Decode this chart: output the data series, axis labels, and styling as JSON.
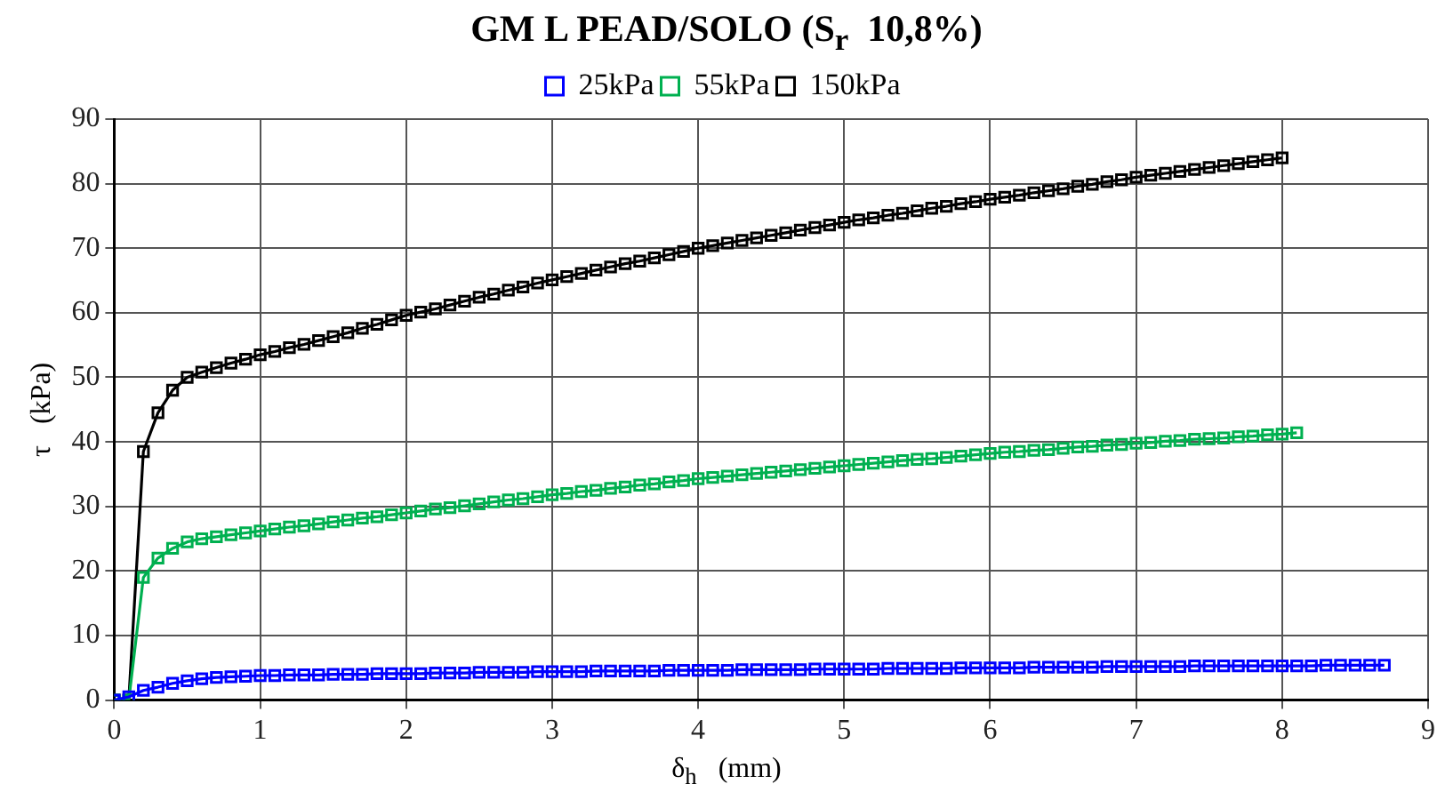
{
  "chart_data": {
    "type": "line",
    "title": "GM L PEAD/SOLO (S$_{r}$  10,8%)",
    "xlabel": "δ$_{h}$   (mm)",
    "ylabel": "τ   (kPa)",
    "xlim": [
      0,
      9
    ],
    "xticks": [
      0,
      1,
      2,
      3,
      4,
      5,
      6,
      7,
      8,
      9
    ],
    "ylim": [
      0,
      90
    ],
    "yticks": [
      0,
      10,
      20,
      30,
      40,
      50,
      60,
      70,
      80,
      90
    ],
    "grid": true,
    "legend": "top",
    "marker": "square",
    "line_style": "solid",
    "series": [
      {
        "name": "25kPa",
        "color": "#0000ff",
        "x": [
          0,
          0.1,
          0.2,
          0.3,
          0.4,
          0.5,
          0.6,
          0.7,
          0.8,
          0.9,
          1.0,
          1.1,
          1.2,
          1.3,
          1.4,
          1.5,
          1.6,
          1.7,
          1.8,
          1.9,
          2.0,
          2.1,
          2.2,
          2.3,
          2.4,
          2.5,
          2.6,
          2.7,
          2.8,
          2.9,
          3.0,
          3.1,
          3.2,
          3.3,
          3.4,
          3.5,
          3.6,
          3.7,
          3.8,
          3.9,
          4.0,
          4.1,
          4.2,
          4.3,
          4.4,
          4.5,
          4.6,
          4.7,
          4.8,
          4.9,
          5.0,
          5.1,
          5.2,
          5.3,
          5.4,
          5.5,
          5.6,
          5.7,
          5.8,
          5.9,
          6.0,
          6.1,
          6.2,
          6.3,
          6.4,
          6.5,
          6.6,
          6.7,
          6.8,
          6.9,
          7.0,
          7.1,
          7.2,
          7.3,
          7.4,
          7.5,
          7.6,
          7.7,
          7.8,
          7.9,
          8.0,
          8.1,
          8.2,
          8.3,
          8.4,
          8.5,
          8.6,
          8.7
        ],
        "values": [
          0,
          0.5,
          1.5,
          2.0,
          2.6,
          3.0,
          3.3,
          3.5,
          3.6,
          3.7,
          3.8,
          3.8,
          3.9,
          3.9,
          3.9,
          4.0,
          4.0,
          4.0,
          4.1,
          4.1,
          4.1,
          4.1,
          4.2,
          4.2,
          4.2,
          4.3,
          4.3,
          4.3,
          4.3,
          4.4,
          4.4,
          4.4,
          4.4,
          4.5,
          4.5,
          4.5,
          4.5,
          4.5,
          4.6,
          4.6,
          4.6,
          4.6,
          4.6,
          4.7,
          4.7,
          4.7,
          4.7,
          4.7,
          4.8,
          4.8,
          4.8,
          4.8,
          4.8,
          4.9,
          4.9,
          4.9,
          4.9,
          4.9,
          5.0,
          5.0,
          5.0,
          5.0,
          5.0,
          5.1,
          5.1,
          5.1,
          5.1,
          5.1,
          5.2,
          5.2,
          5.2,
          5.2,
          5.2,
          5.2,
          5.3,
          5.3,
          5.3,
          5.3,
          5.3,
          5.3,
          5.3,
          5.3,
          5.3,
          5.4,
          5.4,
          5.4,
          5.4,
          5.4
        ]
      },
      {
        "name": "55kPa",
        "color": "#00b050",
        "x": [
          0,
          0.1,
          0.2,
          0.3,
          0.4,
          0.5,
          0.6,
          0.7,
          0.8,
          0.9,
          1.0,
          1.1,
          1.2,
          1.3,
          1.4,
          1.5,
          1.6,
          1.7,
          1.8,
          1.9,
          2.0,
          2.1,
          2.2,
          2.3,
          2.4,
          2.5,
          2.6,
          2.7,
          2.8,
          2.9,
          3.0,
          3.1,
          3.2,
          3.3,
          3.4,
          3.5,
          3.6,
          3.7,
          3.8,
          3.9,
          4.0,
          4.1,
          4.2,
          4.3,
          4.4,
          4.5,
          4.6,
          4.7,
          4.8,
          4.9,
          5.0,
          5.1,
          5.2,
          5.3,
          5.4,
          5.5,
          5.6,
          5.7,
          5.8,
          5.9,
          6.0,
          6.1,
          6.2,
          6.3,
          6.4,
          6.5,
          6.6,
          6.7,
          6.8,
          6.9,
          7.0,
          7.1,
          7.2,
          7.3,
          7.4,
          7.5,
          7.6,
          7.7,
          7.8,
          7.9,
          8.0,
          8.1
        ],
        "values": [
          0,
          0,
          19,
          22,
          23.5,
          24.5,
          25,
          25.3,
          25.6,
          25.9,
          26.2,
          26.5,
          26.8,
          27.0,
          27.3,
          27.6,
          27.9,
          28.2,
          28.4,
          28.7,
          29.0,
          29.3,
          29.6,
          29.8,
          30.1,
          30.4,
          30.7,
          31.0,
          31.2,
          31.5,
          31.8,
          32.0,
          32.3,
          32.5,
          32.8,
          33.0,
          33.3,
          33.5,
          33.8,
          34.0,
          34.3,
          34.5,
          34.7,
          34.9,
          35.1,
          35.3,
          35.5,
          35.7,
          35.9,
          36.1,
          36.3,
          36.5,
          36.7,
          36.9,
          37.1,
          37.3,
          37.4,
          37.6,
          37.8,
          38.0,
          38.2,
          38.4,
          38.5,
          38.7,
          38.8,
          39.0,
          39.2,
          39.3,
          39.5,
          39.6,
          39.8,
          39.9,
          40.1,
          40.2,
          40.4,
          40.5,
          40.6,
          40.8,
          40.9,
          41.1,
          41.2,
          41.4
        ]
      },
      {
        "name": "150kPa",
        "color": "#000000",
        "x": [
          0,
          0.1,
          0.2,
          0.3,
          0.4,
          0.5,
          0.6,
          0.7,
          0.8,
          0.9,
          1.0,
          1.1,
          1.2,
          1.3,
          1.4,
          1.5,
          1.6,
          1.7,
          1.8,
          1.9,
          2.0,
          2.1,
          2.2,
          2.3,
          2.4,
          2.5,
          2.6,
          2.7,
          2.8,
          2.9,
          3.0,
          3.1,
          3.2,
          3.3,
          3.4,
          3.5,
          3.6,
          3.7,
          3.8,
          3.9,
          4.0,
          4.1,
          4.2,
          4.3,
          4.4,
          4.5,
          4.6,
          4.7,
          4.8,
          4.9,
          5.0,
          5.1,
          5.2,
          5.3,
          5.4,
          5.5,
          5.6,
          5.7,
          5.8,
          5.9,
          6.0,
          6.1,
          6.2,
          6.3,
          6.4,
          6.5,
          6.6,
          6.7,
          6.8,
          6.9,
          7.0,
          7.1,
          7.2,
          7.3,
          7.4,
          7.5,
          7.6,
          7.7,
          7.8,
          7.9,
          8.0
        ],
        "values": [
          0,
          0,
          38.5,
          44.5,
          48,
          50,
          50.8,
          51.5,
          52.2,
          52.8,
          53.5,
          54.0,
          54.6,
          55.1,
          55.7,
          56.3,
          56.9,
          57.6,
          58.2,
          58.9,
          59.6,
          60.1,
          60.6,
          61.2,
          61.8,
          62.4,
          62.9,
          63.5,
          64.0,
          64.6,
          65.1,
          65.6,
          66.1,
          66.6,
          67.1,
          67.6,
          68.0,
          68.5,
          69.0,
          69.5,
          70.0,
          70.4,
          70.8,
          71.2,
          71.6,
          72.0,
          72.4,
          72.8,
          73.2,
          73.6,
          74.0,
          74.4,
          74.7,
          75.1,
          75.4,
          75.8,
          76.2,
          76.5,
          76.9,
          77.2,
          77.6,
          77.9,
          78.2,
          78.6,
          78.9,
          79.2,
          79.6,
          79.9,
          80.3,
          80.6,
          81.0,
          81.3,
          81.6,
          81.9,
          82.2,
          82.5,
          82.8,
          83.1,
          83.4,
          83.7,
          84.0
        ]
      }
    ]
  }
}
